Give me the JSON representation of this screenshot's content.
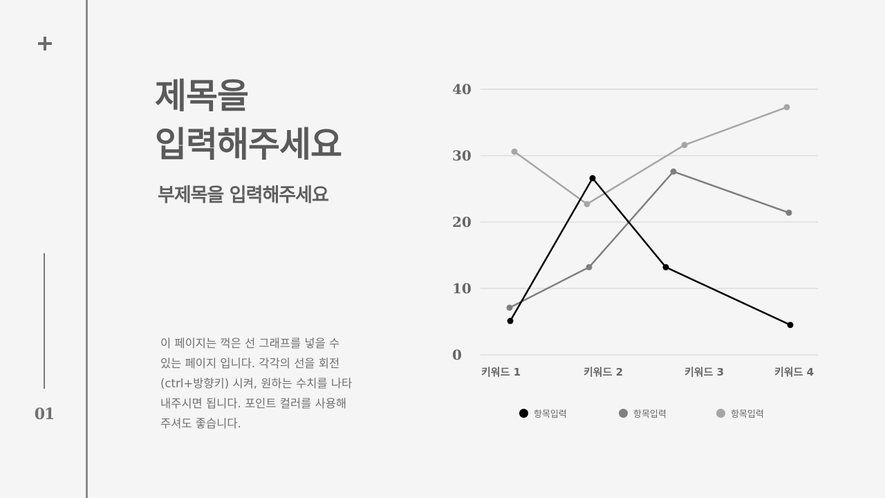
{
  "slide": {
    "plus_icon": "plus-icon",
    "page_number": "01",
    "title_line1": "제목을",
    "title_line2": "입력해주세요",
    "subtitle": "부제목을 입력해주세요",
    "body_lines": [
      "이 페이지는 꺽은 선 그래프를 넣을 수",
      "있는 페이지 입니다. 각각의 선을 회전",
      "(ctrl+방향키) 시켜, 원하는 수치를 나타",
      "내주시면 됩니다. 포인트 컬러를 사용해",
      "주셔도 좋습니다."
    ]
  },
  "colors": {
    "background": "#f5f5f5",
    "series1": "#000000",
    "series2": "#7f7f7f",
    "series3": "#a6a6a6",
    "gridline": "#e3e3e3",
    "axis_text": "#595959"
  },
  "chart_data": {
    "type": "line",
    "title": "",
    "xlabel": "",
    "ylabel": "",
    "categories": [
      "키워드 1",
      "키워드 2",
      "키워드 3",
      "키워드 4"
    ],
    "yticks": [
      "0",
      "10",
      "20",
      "30",
      "40"
    ],
    "ylim": [
      0,
      40
    ],
    "grid": true,
    "legend_position": "bottom",
    "series": [
      {
        "name": "항목입력",
        "color": "#000000",
        "values": [
          5.1,
          26.6,
          13.2,
          4.5
        ]
      },
      {
        "name": "항목입력",
        "color": "#7f7f7f",
        "values": [
          7.1,
          13.2,
          27.6,
          21.4
        ]
      },
      {
        "name": "항목입력",
        "color": "#a6a6a6",
        "values": [
          30.6,
          22.7,
          31.6,
          37.3
        ]
      }
    ]
  }
}
